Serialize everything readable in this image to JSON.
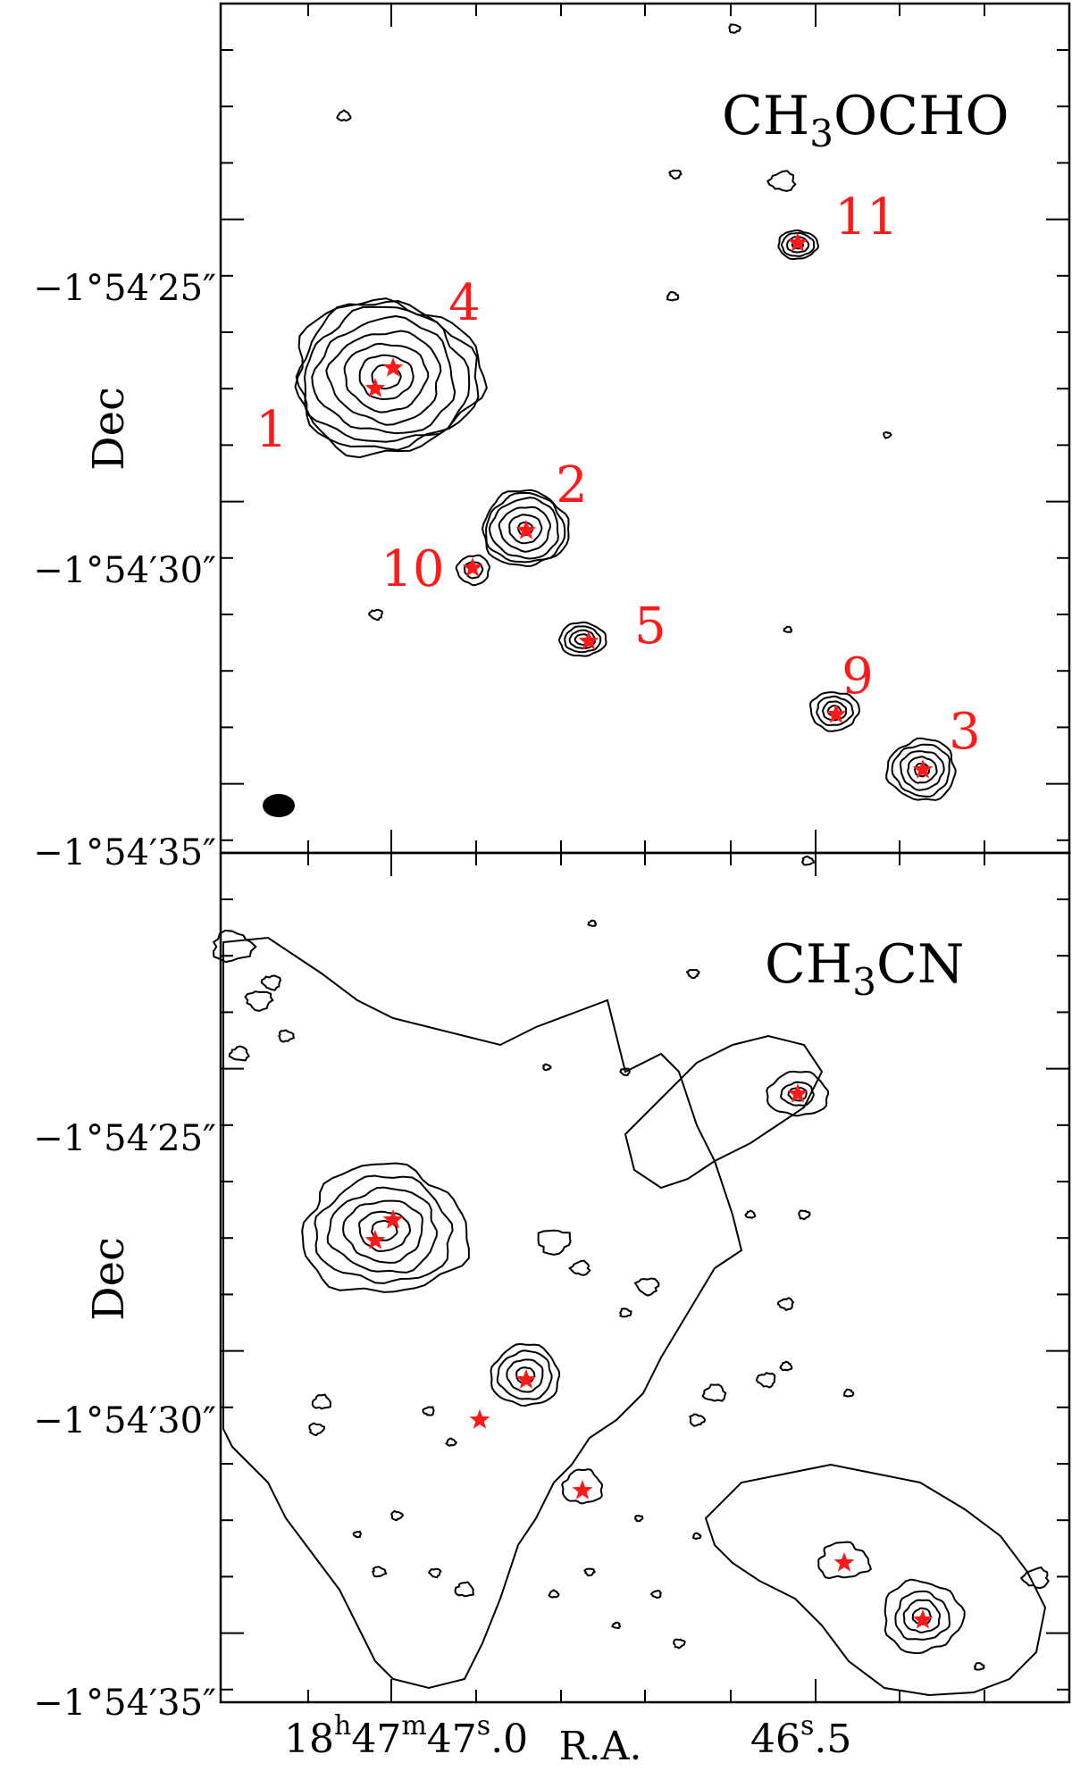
{
  "figure": {
    "ylabel": "Dec",
    "xlabel": "R.A.",
    "colors": {
      "frame": "#000000",
      "contour": "#000000",
      "marker": "#ff1a1a",
      "label": "#ff1a1a"
    }
  },
  "chart_data": [
    {
      "type": "contour",
      "title": "CH3OCHO",
      "ylabel": "Dec",
      "y_ticks": [
        "−1°54′25″",
        "−1°54′30″",
        "−1°54′35″"
      ],
      "beam_shown": true,
      "sources": [
        {
          "id": "1",
          "label_side": "left"
        },
        {
          "id": "4",
          "label_side": "right"
        },
        {
          "id": "2",
          "label_side": "right"
        },
        {
          "id": "10",
          "label_side": "left"
        },
        {
          "id": "5",
          "label_side": "right"
        },
        {
          "id": "11",
          "label_side": "right"
        },
        {
          "id": "9",
          "label_side": "right"
        },
        {
          "id": "3",
          "label_side": "right"
        }
      ]
    },
    {
      "type": "contour",
      "title": "CH3CN",
      "ylabel": "Dec",
      "xlabel": "R.A.",
      "y_ticks": [
        "−1°54′25″",
        "−1°54′30″",
        "−1°54′35″"
      ],
      "x_ticks": [
        "18h47m47.0s",
        "46.5s"
      ]
    }
  ],
  "panels": [
    {
      "molecule": {
        "prefix": "CH",
        "sub": "3",
        "suffix": "OCHO"
      },
      "y_ticks": [
        "−1°54′25″",
        "−1°54′30″",
        "−1°54′35″"
      ],
      "source_labels": [
        "1",
        "4",
        "2",
        "10",
        "5",
        "11",
        "9",
        "3"
      ]
    },
    {
      "molecule": {
        "prefix": "CH",
        "sub": "3",
        "suffix": "CN"
      },
      "y_ticks": [
        "−1°54′25″",
        "−1°54′30″",
        "−1°54′35″"
      ]
    }
  ],
  "x_axis": {
    "tick1": {
      "h": "18",
      "hs": "h",
      "m": "47",
      "ms": "m",
      "s": "47",
      "ss": "s",
      "frac": ".0"
    },
    "tick2": {
      "s": "46",
      "ss": "s",
      "frac": ".5"
    }
  }
}
